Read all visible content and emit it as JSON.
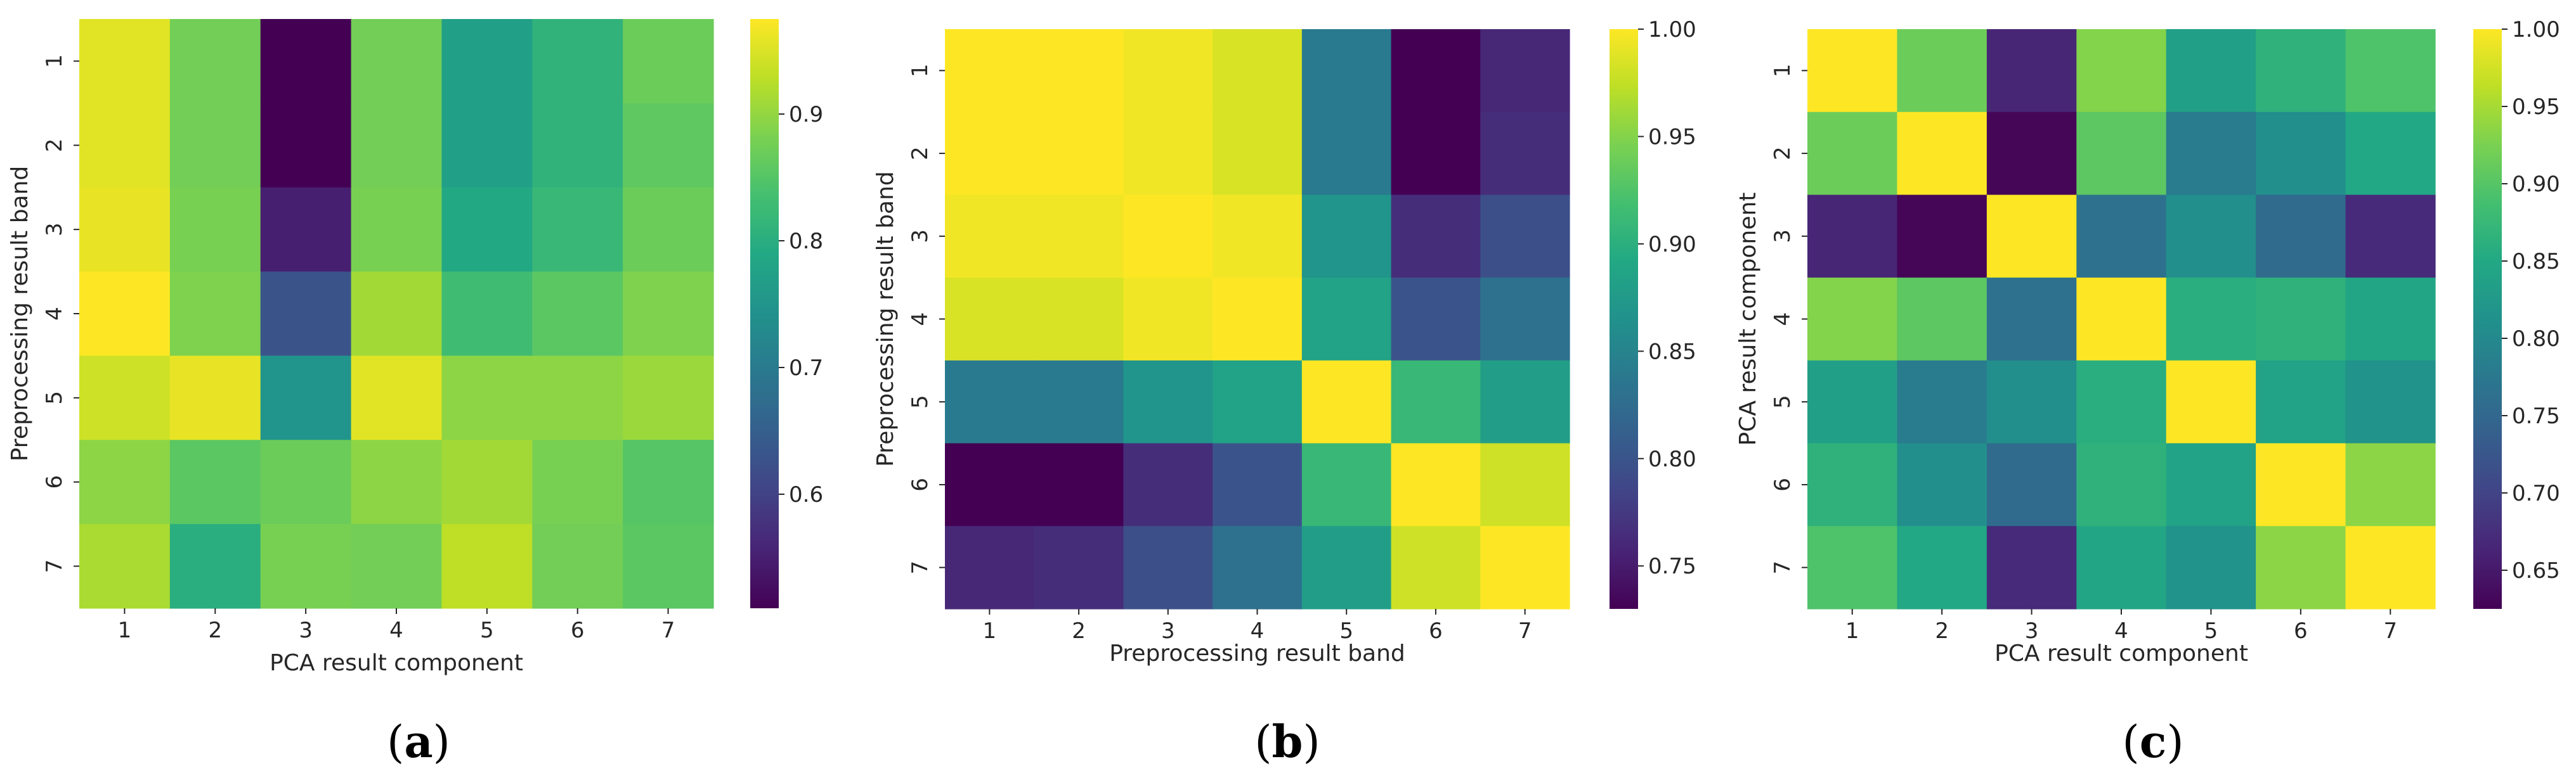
{
  "colormap": "viridis",
  "chart_data": [
    {
      "type": "heatmap",
      "panel_label": "a",
      "xlabel": "PCA result component",
      "ylabel": "Preprocessing result band",
      "x_categories": [
        "1",
        "2",
        "3",
        "4",
        "5",
        "6",
        "7"
      ],
      "y_categories": [
        "1",
        "2",
        "3",
        "4",
        "5",
        "6",
        "7"
      ],
      "values": [
        [
          0.955,
          0.875,
          0.51,
          0.875,
          0.77,
          0.81,
          0.87
        ],
        [
          0.955,
          0.875,
          0.51,
          0.875,
          0.77,
          0.81,
          0.86
        ],
        [
          0.96,
          0.88,
          0.55,
          0.88,
          0.79,
          0.82,
          0.87
        ],
        [
          0.975,
          0.885,
          0.63,
          0.91,
          0.83,
          0.855,
          0.885
        ],
        [
          0.94,
          0.96,
          0.75,
          0.955,
          0.895,
          0.895,
          0.905
        ],
        [
          0.895,
          0.855,
          0.87,
          0.895,
          0.91,
          0.88,
          0.85
        ],
        [
          0.915,
          0.8,
          0.88,
          0.875,
          0.93,
          0.875,
          0.855
        ]
      ],
      "vmin": 0.51,
      "vmax": 0.975,
      "colorbar_ticks": [
        {
          "value": 0.6,
          "label": "0.6"
        },
        {
          "value": 0.7,
          "label": "0.7"
        },
        {
          "value": 0.8,
          "label": "0.8"
        },
        {
          "value": 0.9,
          "label": "0.9"
        }
      ]
    },
    {
      "type": "heatmap",
      "panel_label": "b",
      "xlabel": "Preprocessing result band",
      "ylabel": "Preprocessing result band",
      "x_categories": [
        "1",
        "2",
        "3",
        "4",
        "5",
        "6",
        "7"
      ],
      "y_categories": [
        "1",
        "2",
        "3",
        "4",
        "5",
        "6",
        "7"
      ],
      "values": [
        [
          1.0,
          1.0,
          0.995,
          0.985,
          0.84,
          0.73,
          0.76
        ],
        [
          1.0,
          1.0,
          0.995,
          0.985,
          0.84,
          0.73,
          0.765
        ],
        [
          0.995,
          0.995,
          1.0,
          0.995,
          0.87,
          0.765,
          0.795
        ],
        [
          0.985,
          0.985,
          0.995,
          1.0,
          0.885,
          0.8,
          0.83
        ],
        [
          0.84,
          0.84,
          0.87,
          0.885,
          1.0,
          0.91,
          0.88
        ],
        [
          0.73,
          0.73,
          0.765,
          0.8,
          0.91,
          1.0,
          0.98
        ],
        [
          0.76,
          0.765,
          0.795,
          0.83,
          0.88,
          0.98,
          1.0
        ]
      ],
      "vmin": 0.73,
      "vmax": 1.0,
      "colorbar_ticks": [
        {
          "value": 0.75,
          "label": "0.75"
        },
        {
          "value": 0.8,
          "label": "0.80"
        },
        {
          "value": 0.85,
          "label": "0.85"
        },
        {
          "value": 0.9,
          "label": "0.90"
        },
        {
          "value": 0.95,
          "label": "0.95"
        },
        {
          "value": 1.0,
          "label": "1.00"
        }
      ]
    },
    {
      "type": "heatmap",
      "panel_label": "c",
      "xlabel": "PCA result component",
      "ylabel": "PCA result component",
      "x_categories": [
        "1",
        "2",
        "3",
        "4",
        "5",
        "6",
        "7"
      ],
      "y_categories": [
        "1",
        "2",
        "3",
        "4",
        "5",
        "6",
        "7"
      ],
      "values": [
        [
          1.0,
          0.915,
          0.665,
          0.93,
          0.835,
          0.865,
          0.895
        ],
        [
          0.915,
          1.0,
          0.63,
          0.905,
          0.78,
          0.81,
          0.85
        ],
        [
          0.665,
          0.63,
          1.0,
          0.765,
          0.81,
          0.755,
          0.67
        ],
        [
          0.93,
          0.905,
          0.765,
          1.0,
          0.86,
          0.865,
          0.845
        ],
        [
          0.835,
          0.78,
          0.81,
          0.86,
          1.0,
          0.84,
          0.815
        ],
        [
          0.865,
          0.81,
          0.755,
          0.865,
          0.84,
          1.0,
          0.935
        ],
        [
          0.895,
          0.85,
          0.67,
          0.845,
          0.815,
          0.935,
          1.0
        ]
      ],
      "vmin": 0.625,
      "vmax": 1.0,
      "colorbar_ticks": [
        {
          "value": 0.65,
          "label": "0.65"
        },
        {
          "value": 0.7,
          "label": "0.70"
        },
        {
          "value": 0.75,
          "label": "0.75"
        },
        {
          "value": 0.8,
          "label": "0.80"
        },
        {
          "value": 0.85,
          "label": "0.85"
        },
        {
          "value": 0.9,
          "label": "0.90"
        },
        {
          "value": 0.95,
          "label": "0.95"
        },
        {
          "value": 1.0,
          "label": "1.00"
        }
      ]
    }
  ]
}
